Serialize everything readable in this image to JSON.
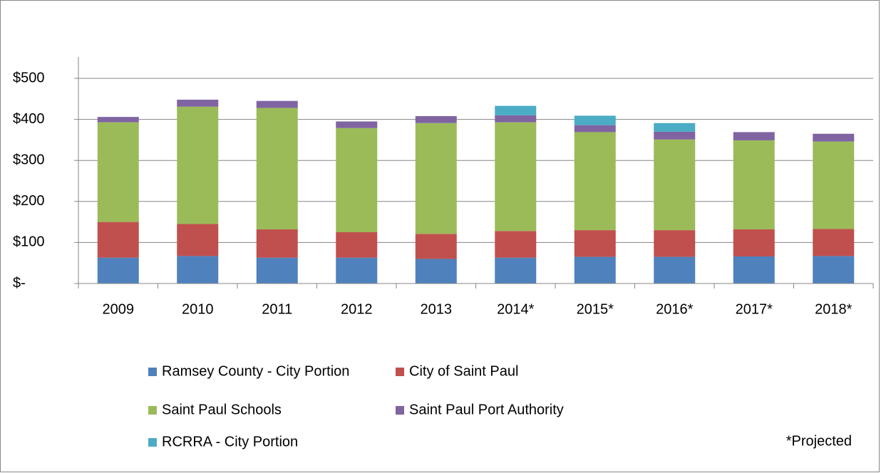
{
  "chart_data": {
    "type": "stacked_bar",
    "categories": [
      "2009",
      "2010",
      "2011",
      "2012",
      "2013",
      "2014*",
      "2015*",
      "2016*",
      "2017*",
      "2018*"
    ],
    "series": [
      {
        "name": "Ramsey County - City Portion",
        "color": "#4f81bd",
        "values": [
          63,
          67,
          63,
          63,
          60,
          63,
          65,
          65,
          66,
          67
        ]
      },
      {
        "name": "City of Saint Paul",
        "color": "#c0504d",
        "values": [
          87,
          78,
          69,
          62,
          61,
          65,
          65,
          65,
          66,
          66
        ]
      },
      {
        "name": "Saint Paul Schools",
        "color": "#9bbb59",
        "values": [
          243,
          286,
          296,
          254,
          270,
          265,
          239,
          221,
          217,
          213
        ]
      },
      {
        "name": "Saint Paul Port Authority",
        "color": "#8064a2",
        "values": [
          13,
          17,
          17,
          16,
          17,
          17,
          17,
          19,
          20,
          19
        ]
      },
      {
        "name": "RCRRA - City Portion",
        "color": "#4bacc6",
        "values": [
          null,
          null,
          null,
          null,
          null,
          23,
          23,
          21,
          null,
          null
        ]
      }
    ],
    "ylim": [
      0,
      500
    ],
    "yticks": [
      {
        "value": 0,
        "label": "$-"
      },
      {
        "value": 100,
        "label": "$100"
      },
      {
        "value": 200,
        "label": "$200"
      },
      {
        "value": 300,
        "label": "$300"
      },
      {
        "value": 400,
        "label": "$400"
      },
      {
        "value": 500,
        "label": "$500"
      }
    ],
    "grid": true,
    "annotation": "*Projected"
  }
}
